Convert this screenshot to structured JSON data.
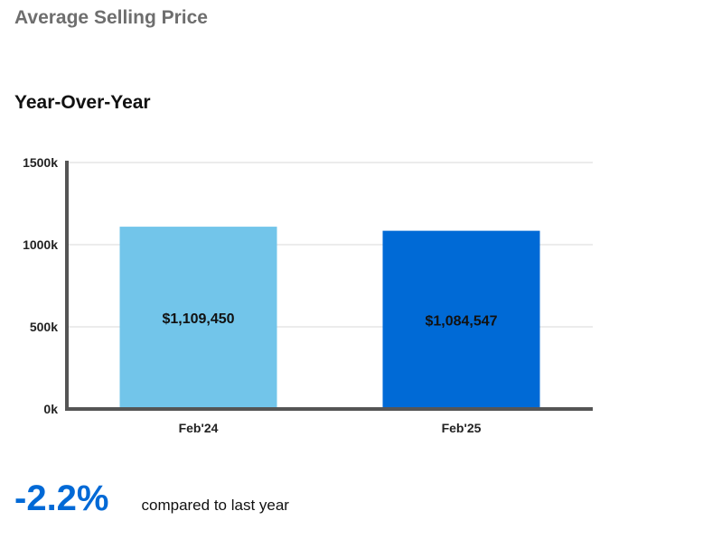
{
  "header": {
    "title": "Average Selling Price"
  },
  "section": {
    "title": "Year-Over-Year"
  },
  "chart_data": {
    "type": "bar",
    "categories": [
      "Feb'24",
      "Feb'25"
    ],
    "values": [
      1109450,
      1084547
    ],
    "value_labels": [
      "$1,109,450",
      "$1,084,547"
    ],
    "bar_colors": [
      "#72c5ea",
      "#006ad6"
    ],
    "y_ticks": [
      0,
      500000,
      1000000,
      1500000
    ],
    "y_tick_labels": [
      "0k",
      "500k",
      "1000k",
      "1500k"
    ],
    "ylim": [
      0,
      1500000
    ],
    "grid": true
  },
  "summary": {
    "change": "-2.2%",
    "caption": "compared to last year"
  }
}
